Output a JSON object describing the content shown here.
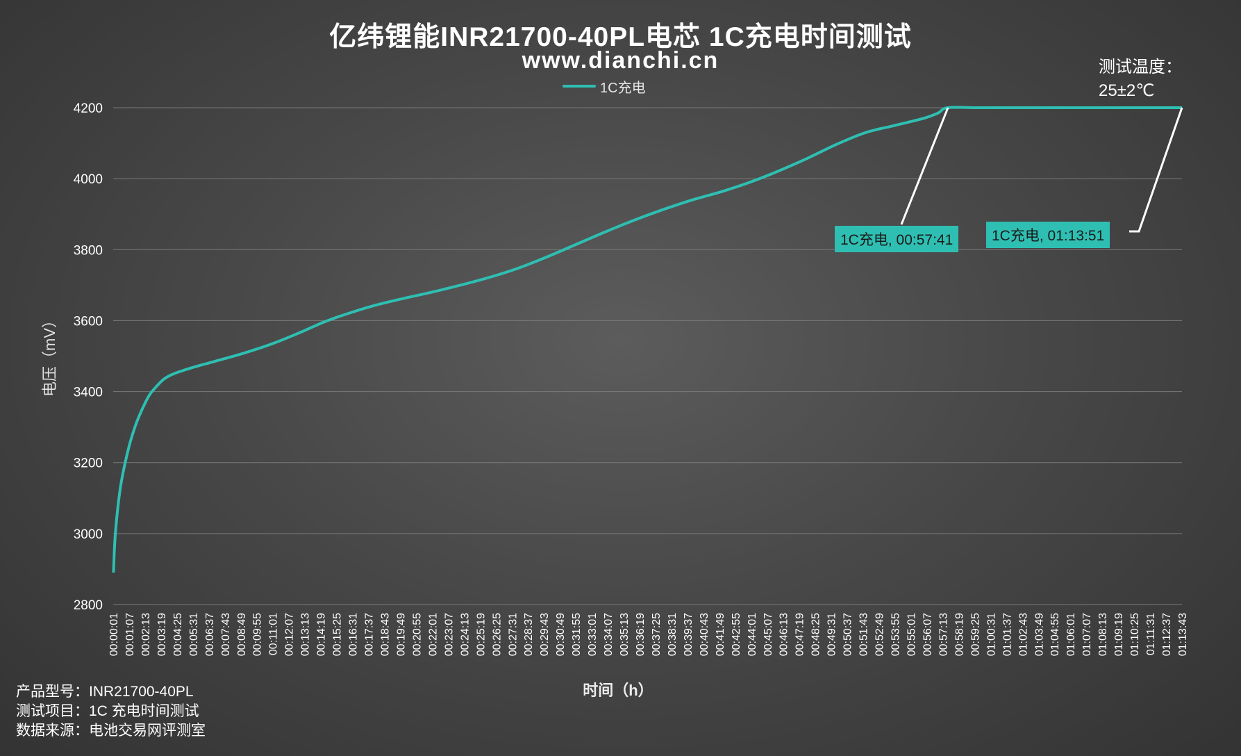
{
  "header": {
    "title": "亿纬锂能INR21700-40PL电芯 1C充电时间测试",
    "subtitle": "www.dianchi.cn"
  },
  "temperature": {
    "line1": "测试温度：",
    "line2": "25±2℃"
  },
  "footer": {
    "line1": "产品型号：INR21700-40PL",
    "line2": "测试项目：1C 充电时间测试",
    "line3": "数据来源：电池交易网评测室"
  },
  "colors": {
    "series": "#2ebfb2",
    "grid": "#7a7a7a",
    "leader": "#ffffff"
  },
  "chart_data": {
    "type": "line",
    "title": "亿纬锂能INR21700-40PL电芯 1C充电时间测试",
    "xlabel": "时间（h）",
    "ylabel": "电压（mV）",
    "ylim": [
      2800,
      4200
    ],
    "yticks": [
      2800,
      3000,
      3200,
      3400,
      3600,
      3800,
      4000,
      4200
    ],
    "grid": true,
    "legend_position": "top",
    "x_unit": "minutes",
    "xlim": [
      0,
      73.85
    ],
    "x_tick_labels": [
      "00:00:01",
      "00:01:07",
      "00:02:13",
      "00:03:19",
      "00:04:25",
      "00:05:31",
      "00:06:37",
      "00:07:43",
      "00:08:49",
      "00:09:55",
      "00:11:01",
      "00:12:07",
      "00:13:13",
      "00:14:19",
      "00:15:25",
      "00:16:31",
      "00:17:37",
      "00:18:43",
      "00:19:49",
      "00:20:55",
      "00:22:01",
      "00:23:07",
      "00:24:13",
      "00:25:19",
      "00:26:25",
      "00:27:31",
      "00:28:37",
      "00:29:43",
      "00:30:49",
      "00:31:55",
      "00:33:01",
      "00:34:07",
      "00:35:13",
      "00:36:19",
      "00:37:25",
      "00:38:31",
      "00:39:37",
      "00:40:43",
      "00:41:49",
      "00:42:55",
      "00:44:01",
      "00:45:07",
      "00:46:13",
      "00:47:19",
      "00:48:25",
      "00:49:31",
      "00:50:37",
      "00:51:43",
      "00:52:49",
      "00:53:55",
      "00:55:01",
      "00:56:07",
      "00:57:13",
      "00:58:19",
      "00:59:25",
      "01:00:31",
      "01:01:37",
      "01:02:43",
      "01:03:49",
      "01:04:55",
      "01:06:01",
      "01:07:07",
      "01:08:13",
      "01:09:19",
      "01:10:25",
      "01:11:31",
      "01:12:37",
      "01:13:43"
    ],
    "series": [
      {
        "name": "1C充电",
        "points": [
          [
            0.02,
            2890
          ],
          [
            0.15,
            3000
          ],
          [
            0.5,
            3130
          ],
          [
            1.0,
            3230
          ],
          [
            1.5,
            3300
          ],
          [
            2.0,
            3350
          ],
          [
            2.5,
            3390
          ],
          [
            3.0,
            3415
          ],
          [
            3.5,
            3435
          ],
          [
            4.0,
            3447
          ],
          [
            4.5,
            3455
          ],
          [
            5.5,
            3468
          ],
          [
            7.0,
            3485
          ],
          [
            9.0,
            3508
          ],
          [
            11.0,
            3535
          ],
          [
            13.0,
            3568
          ],
          [
            14.5,
            3595
          ],
          [
            16.0,
            3617
          ],
          [
            18.0,
            3642
          ],
          [
            20.0,
            3662
          ],
          [
            22.0,
            3680
          ],
          [
            24.0,
            3700
          ],
          [
            26.0,
            3722
          ],
          [
            28.0,
            3748
          ],
          [
            30.0,
            3780
          ],
          [
            32.0,
            3815
          ],
          [
            34.0,
            3850
          ],
          [
            36.0,
            3883
          ],
          [
            38.0,
            3913
          ],
          [
            40.0,
            3940
          ],
          [
            42.0,
            3963
          ],
          [
            44.0,
            3990
          ],
          [
            46.0,
            4022
          ],
          [
            48.0,
            4058
          ],
          [
            50.0,
            4097
          ],
          [
            52.0,
            4130
          ],
          [
            54.0,
            4150
          ],
          [
            56.0,
            4170
          ],
          [
            57.0,
            4185
          ],
          [
            57.68,
            4200
          ],
          [
            60.0,
            4200
          ],
          [
            65.0,
            4200
          ],
          [
            70.0,
            4200
          ],
          [
            73.85,
            4200
          ]
        ]
      }
    ],
    "annotations": [
      {
        "label": "1C充电, 00:57:41",
        "x": 57.68,
        "y": 4200
      },
      {
        "label": "1C充电, 01:13:51",
        "x": 73.85,
        "y": 4200
      }
    ]
  }
}
